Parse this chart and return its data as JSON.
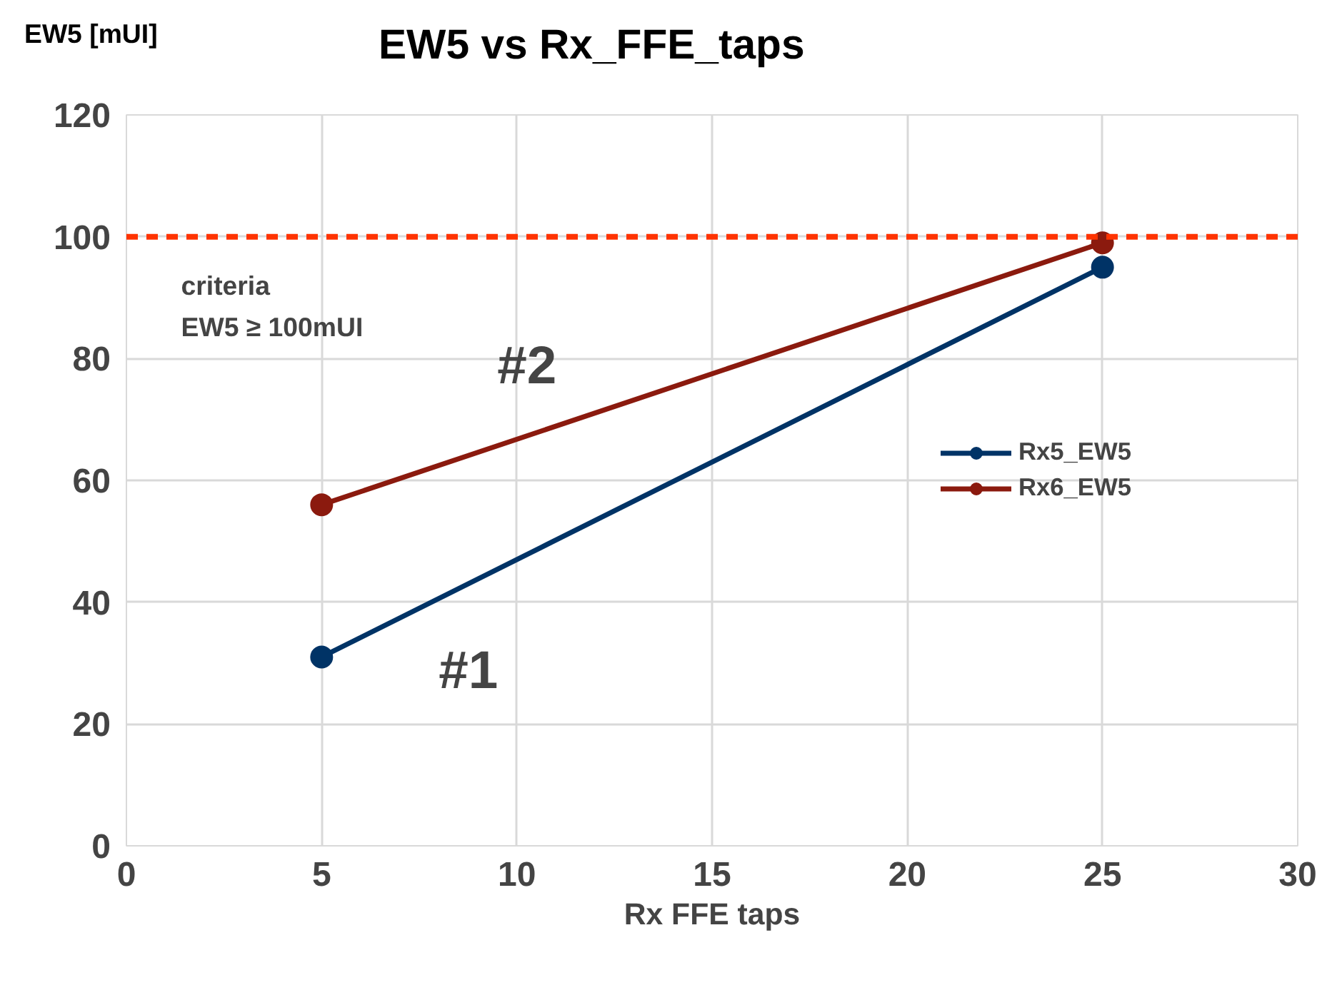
{
  "chart_data": {
    "type": "line",
    "title": "EW5 vs Rx_FFE_taps",
    "xlabel": "Rx FFE taps",
    "ylabel": "EW5 [mUI]",
    "x": [
      5,
      25
    ],
    "series": [
      {
        "name": "Rx5_EW5",
        "color": "#003366",
        "values": [
          31,
          95
        ]
      },
      {
        "name": "Rx6_EW5",
        "color": "#8b1a0e",
        "values": [
          56,
          99
        ]
      }
    ],
    "xlim": [
      0,
      30
    ],
    "xticks": [
      0,
      5,
      10,
      15,
      20,
      25,
      30
    ],
    "ylim": [
      0,
      120
    ],
    "yticks": [
      0,
      20,
      40,
      60,
      80,
      100,
      120
    ],
    "ref_lines": [
      {
        "axis": "y",
        "value": 100,
        "label": "criteria\nEW5 ≥ 100mUI",
        "color": "#ff3300",
        "line_style": "dashed"
      }
    ],
    "annotations": [
      "#1",
      "#2"
    ],
    "grid": true,
    "legend": "right",
    "marker": "circle",
    "line_style": "solid"
  }
}
